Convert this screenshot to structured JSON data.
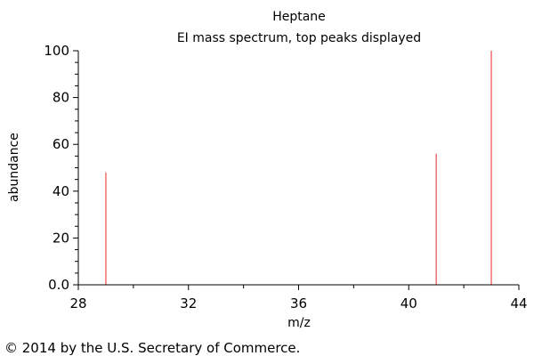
{
  "chart_data": {
    "type": "bar",
    "title": "Heptane",
    "subtitle": "EI mass spectrum, top peaks displayed",
    "xlabel": "m/z",
    "ylabel": "abundance",
    "xlim": [
      28,
      44
    ],
    "ylim": [
      0,
      100
    ],
    "x_ticks": [
      28,
      32,
      36,
      40,
      44
    ],
    "y_ticks": [
      0,
      20,
      40,
      60,
      80,
      100
    ],
    "y_tick_labels": [
      "0.0",
      "20",
      "40",
      "60",
      "80",
      "100"
    ],
    "grid": false,
    "peaks": [
      {
        "mz": 29,
        "abundance": 48
      },
      {
        "mz": 41,
        "abundance": 56
      },
      {
        "mz": 43,
        "abundance": 100
      }
    ],
    "colors": {
      "peak": "#f07070",
      "axis": "#000000"
    }
  },
  "footer": {
    "copyright": "© 2014 by the U.S. Secretary of Commerce."
  }
}
